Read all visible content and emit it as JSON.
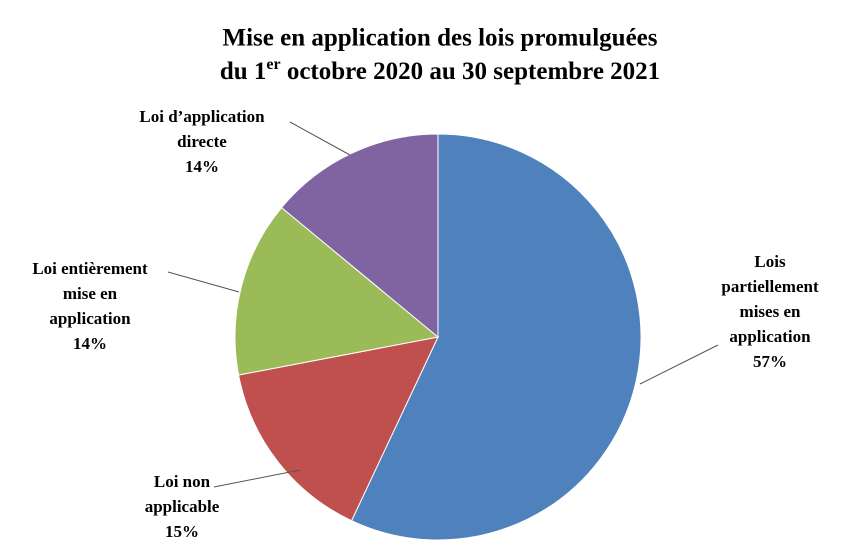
{
  "chart_data": {
    "type": "pie",
    "title": {
      "line1": "Mise en application des lois promulguées",
      "line2_start": "du 1",
      "line2_superscript": "er",
      "line2_end": " octobre 2020 au 30 septembre 2021"
    },
    "categories": [
      [
        "Lois",
        "partiellement",
        "mises en",
        "application"
      ],
      [
        "Loi non",
        "applicable"
      ],
      [
        "Loi entièrement",
        "mise en",
        "application"
      ],
      [
        "Loi d’application",
        "directe"
      ]
    ],
    "values": [
      57,
      15,
      14,
      14
    ],
    "value_labels": [
      "57%",
      "15%",
      "14%",
      "14%"
    ],
    "colors": [
      "#4f81bd",
      "#c0504d",
      "#9bbb59",
      "#8064a2"
    ],
    "start_angle": "top",
    "direction": "clockwise"
  }
}
